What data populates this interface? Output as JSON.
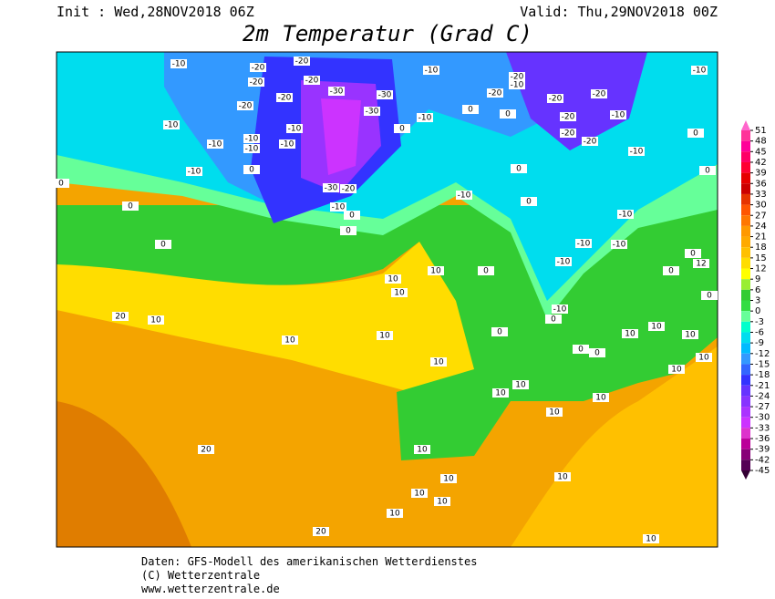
{
  "header": {
    "init": "Init : Wed,28NOV2018 06Z",
    "valid": "Valid: Thu,29NOV2018 00Z",
    "title": "2m Temperatur (Grad C)"
  },
  "legend": {
    "ticks": [
      51,
      48,
      45,
      42,
      39,
      36,
      33,
      30,
      27,
      24,
      21,
      18,
      15,
      12,
      9,
      6,
      3,
      0,
      -3,
      -6,
      -9,
      -12,
      -15,
      -18,
      -21,
      -24,
      -27,
      -30,
      -33,
      -36,
      -39,
      -42,
      -45
    ],
    "colors": [
      "#ff3399",
      "#ff0099",
      "#ff0066",
      "#ff0033",
      "#e60000",
      "#cc0000",
      "#e63300",
      "#ff5500",
      "#ff7700",
      "#ff9900",
      "#ffaa00",
      "#ffc000",
      "#ffdd00",
      "#ffff00",
      "#99ee33",
      "#33cc33",
      "#33dd44",
      "#66ff99",
      "#00ffcc",
      "#00ddee",
      "#00bbff",
      "#3399ff",
      "#3366ff",
      "#3333ff",
      "#6633ff",
      "#8833ff",
      "#aa33ff",
      "#cc33ff",
      "#dd33cc",
      "#bb0099",
      "#880077",
      "#550055"
    ]
  },
  "map": {
    "contour_labels": [
      -10,
      -20,
      -20,
      -10,
      -20,
      -10,
      -20,
      -20,
      -10,
      -20,
      -20,
      -30,
      -30,
      -20,
      -20,
      -20,
      -30,
      -10,
      0,
      0,
      -20,
      -10,
      -10,
      -10,
      0,
      -20,
      0,
      -10,
      -10,
      -10,
      -10,
      -20,
      -10,
      -10,
      0,
      0,
      0,
      -30,
      -20,
      0,
      -10,
      0,
      -10,
      -10,
      0,
      0,
      0,
      0,
      -10,
      -10,
      0,
      10,
      10,
      12,
      0,
      0,
      -10,
      10,
      0,
      20,
      10,
      -10,
      0,
      10,
      0,
      10,
      10,
      10,
      10,
      0,
      10,
      10,
      0,
      10,
      10,
      10,
      10,
      10,
      20,
      10,
      10,
      10,
      10,
      10,
      10,
      20,
      10
    ]
  },
  "footer": [
    "Daten: GFS-Modell des amerikanischen Wetterdienstes",
    "(C) Wetterzentrale",
    "www.wetterzentrale.de"
  ]
}
